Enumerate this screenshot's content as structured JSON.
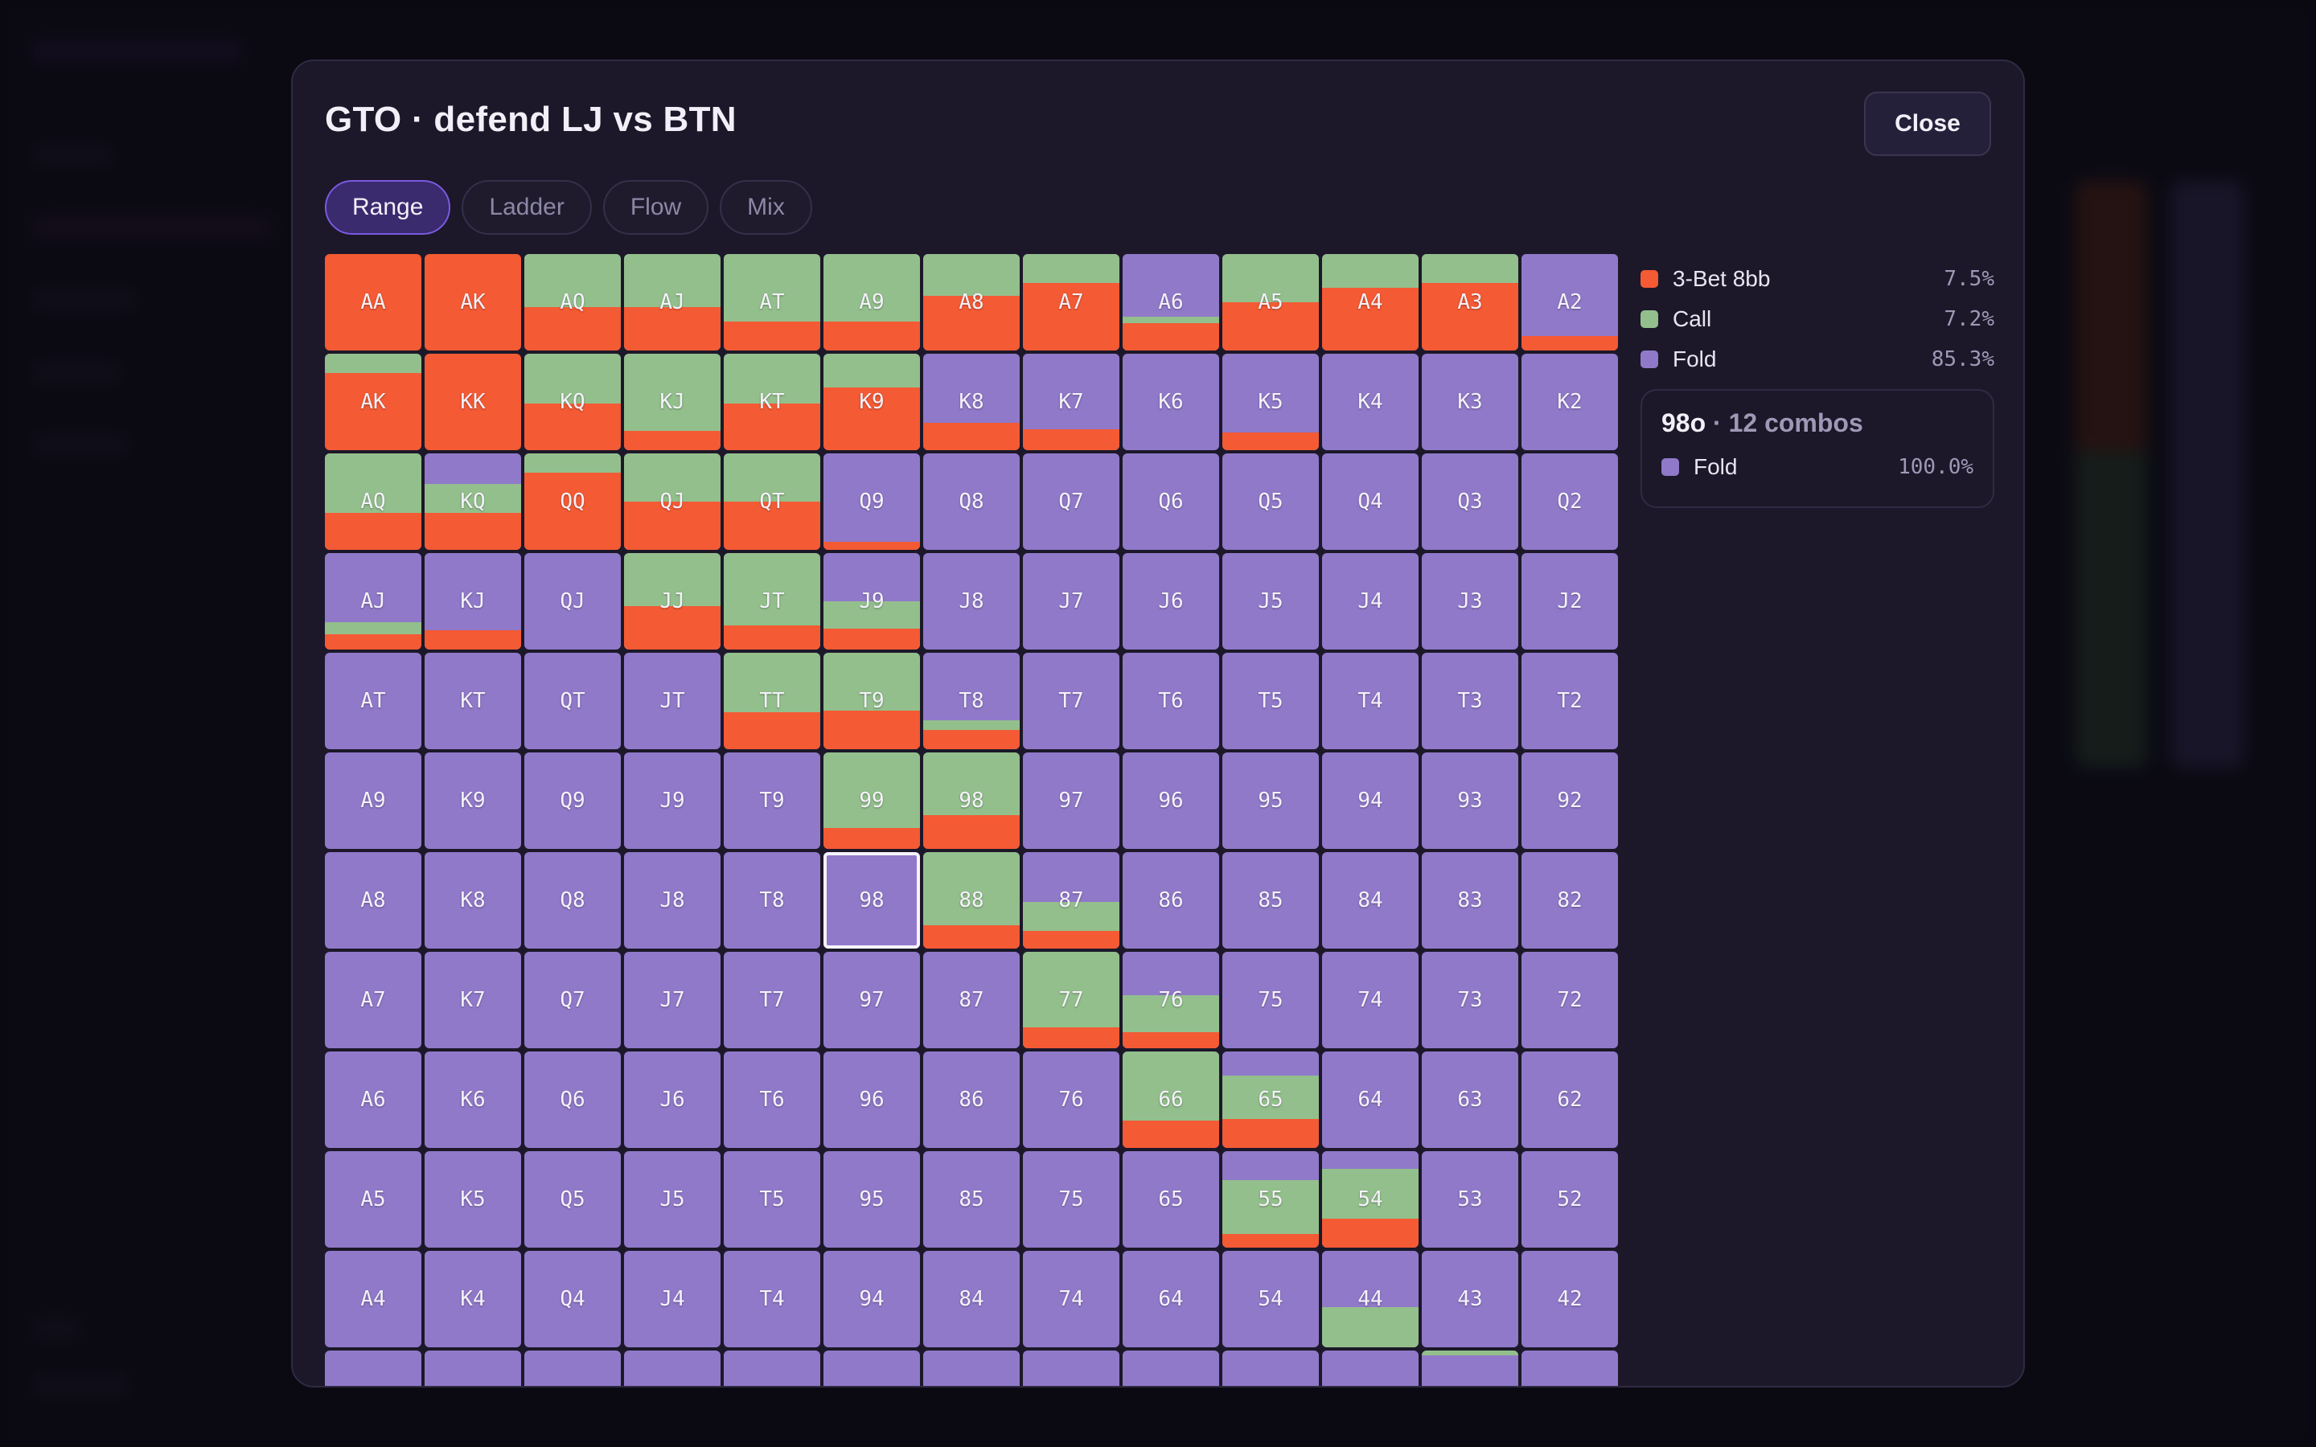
{
  "modal": {
    "title": "GTO · defend LJ vs BTN",
    "close_label": "Close",
    "tabs": [
      {
        "label": "Range",
        "active": true
      },
      {
        "label": "Ladder",
        "active": false
      },
      {
        "label": "Flow",
        "active": false
      },
      {
        "label": "Mix",
        "active": false
      }
    ]
  },
  "legend": [
    {
      "name": "3-Bet 8bb",
      "pct": "7.5%",
      "color": "#f45a34"
    },
    {
      "name": "Call",
      "pct": "7.2%",
      "color": "#93bf8c"
    },
    {
      "name": "Fold",
      "pct": "85.3%",
      "color": "#9079c9"
    }
  ],
  "selected_combo": {
    "hand": "98o",
    "combos_text": "· 12 combos",
    "action": "Fold",
    "pct": "100.0%",
    "color": "#9079c9"
  },
  "grid": {
    "rows": [
      [
        "AA",
        "AK",
        "AQ",
        "AJ",
        "AT",
        "A9",
        "A8",
        "A7",
        "A6",
        "A5",
        "A4",
        "A3",
        "A2"
      ],
      [
        "AK",
        "KK",
        "KQ",
        "KJ",
        "KT",
        "K9",
        "K8",
        "K7",
        "K6",
        "K5",
        "K4",
        "K3",
        "K2"
      ],
      [
        "AQ",
        "KQ",
        "QQ",
        "QJ",
        "QT",
        "Q9",
        "Q8",
        "Q7",
        "Q6",
        "Q5",
        "Q4",
        "Q3",
        "Q2"
      ],
      [
        "AJ",
        "KJ",
        "QJ",
        "JJ",
        "JT",
        "J9",
        "J8",
        "J7",
        "J6",
        "J5",
        "J4",
        "J3",
        "J2"
      ],
      [
        "AT",
        "KT",
        "QT",
        "JT",
        "TT",
        "T9",
        "T8",
        "T7",
        "T6",
        "T5",
        "T4",
        "T3",
        "T2"
      ],
      [
        "A9",
        "K9",
        "Q9",
        "J9",
        "T9",
        "99",
        "98",
        "97",
        "96",
        "95",
        "94",
        "93",
        "92"
      ],
      [
        "A8",
        "K8",
        "Q8",
        "J8",
        "T8",
        "98",
        "88",
        "87",
        "86",
        "85",
        "84",
        "83",
        "82"
      ],
      [
        "A7",
        "K7",
        "Q7",
        "J7",
        "T7",
        "97",
        "87",
        "77",
        "76",
        "75",
        "74",
        "73",
        "72"
      ],
      [
        "A6",
        "K6",
        "Q6",
        "J6",
        "T6",
        "96",
        "86",
        "76",
        "66",
        "65",
        "64",
        "63",
        "62"
      ],
      [
        "A5",
        "K5",
        "Q5",
        "J5",
        "T5",
        "95",
        "85",
        "75",
        "65",
        "55",
        "54",
        "53",
        "52"
      ],
      [
        "A4",
        "K4",
        "Q4",
        "J4",
        "T4",
        "94",
        "84",
        "74",
        "64",
        "54",
        "44",
        "43",
        "42"
      ],
      [
        "",
        "",
        "",
        "",
        "",
        "",
        "",
        "",
        "",
        "",
        "",
        "",
        ""
      ]
    ],
    "selected": [
      6,
      5
    ],
    "mix": {
      "0-0": [
        0,
        0,
        100
      ],
      "0-1": [
        0,
        0,
        100
      ],
      "0-2": [
        0,
        55,
        45
      ],
      "0-3": [
        0,
        55,
        45
      ],
      "0-4": [
        0,
        70,
        30
      ],
      "0-5": [
        0,
        70,
        30
      ],
      "0-6": [
        0,
        43,
        57
      ],
      "0-7": [
        0,
        30,
        70
      ],
      "0-8": [
        65,
        7,
        28
      ],
      "0-9": [
        0,
        50,
        50
      ],
      "0-10": [
        0,
        35,
        65
      ],
      "0-11": [
        0,
        30,
        70
      ],
      "0-12": [
        85,
        0,
        15
      ],
      "1-0": [
        0,
        20,
        80
      ],
      "1-1": [
        0,
        0,
        100
      ],
      "1-2": [
        0,
        52,
        48
      ],
      "1-3": [
        0,
        80,
        20
      ],
      "1-4": [
        0,
        52,
        48
      ],
      "1-5": [
        0,
        35,
        65
      ],
      "1-6": [
        72,
        0,
        28
      ],
      "1-7": [
        78,
        0,
        22
      ],
      "1-9": [
        82,
        0,
        18
      ],
      "2-0": [
        0,
        62,
        38
      ],
      "2-1": [
        32,
        30,
        38
      ],
      "2-2": [
        0,
        20,
        80
      ],
      "2-3": [
        0,
        50,
        50
      ],
      "2-4": [
        0,
        50,
        50
      ],
      "2-5": [
        92,
        0,
        8
      ],
      "3-0": [
        72,
        12,
        16
      ],
      "3-1": [
        80,
        0,
        20
      ],
      "3-3": [
        0,
        55,
        45
      ],
      "3-4": [
        0,
        75,
        25
      ],
      "3-5": [
        50,
        28,
        22
      ],
      "4-4": [
        0,
        62,
        38
      ],
      "4-5": [
        0,
        60,
        40
      ],
      "4-6": [
        70,
        10,
        20
      ],
      "5-5": [
        0,
        78,
        22
      ],
      "5-6": [
        0,
        65,
        35
      ],
      "6-6": [
        0,
        76,
        24
      ],
      "6-7": [
        52,
        30,
        18
      ],
      "7-7": [
        0,
        78,
        22
      ],
      "7-8": [
        45,
        38,
        17
      ],
      "8-8": [
        0,
        72,
        28
      ],
      "8-9": [
        25,
        45,
        30
      ],
      "9-9": [
        30,
        56,
        14
      ],
      "9-10": [
        18,
        52,
        30
      ],
      "10-10": [
        58,
        42,
        0
      ],
      "11-11": [
        0,
        5,
        0
      ]
    }
  }
}
